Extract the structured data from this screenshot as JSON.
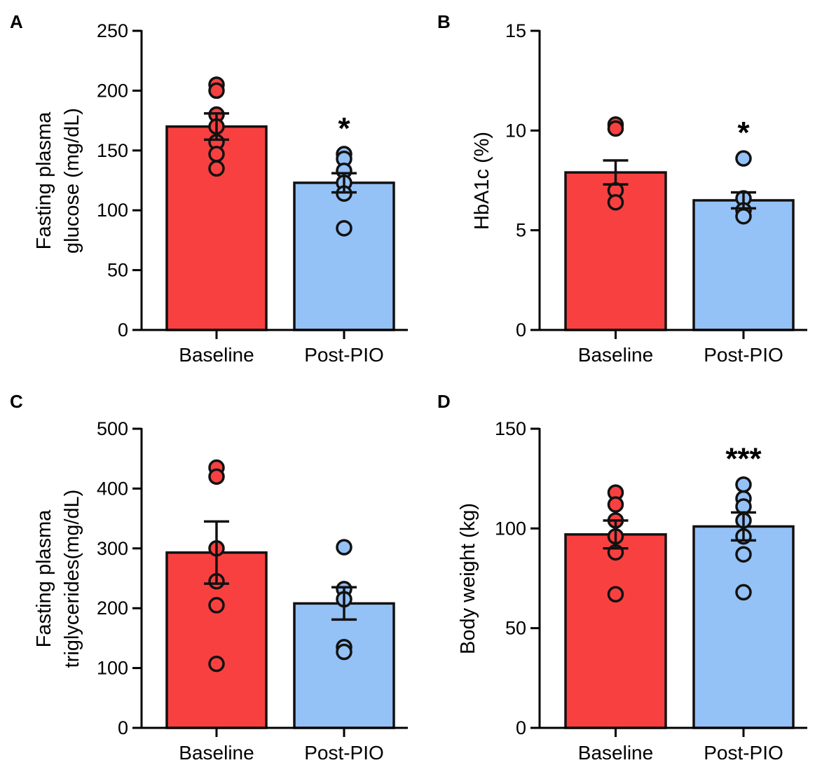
{
  "colors": {
    "baseline": "#f94040",
    "post": "#94c1f6",
    "stroke": "#111111"
  },
  "chart_data": [
    {
      "type": "bar",
      "panel": "A",
      "categories": [
        "Baseline",
        "Post-PIO"
      ],
      "values": [
        170,
        123
      ],
      "sem": [
        11,
        8
      ],
      "points": [
        [
          205,
          200,
          180,
          170,
          157,
          147,
          135
        ],
        [
          147,
          143,
          133,
          123,
          114,
          85
        ]
      ],
      "ylabel": [
        "Fasting plasma",
        "glucose (mg/dL)"
      ],
      "ylim": [
        0,
        250
      ],
      "yticks": [
        0,
        50,
        100,
        150,
        200,
        250
      ],
      "significance": [
        "",
        "*"
      ]
    },
    {
      "type": "bar",
      "panel": "B",
      "categories": [
        "Baseline",
        "Post-PIO"
      ],
      "values": [
        7.9,
        6.5
      ],
      "sem": [
        0.6,
        0.4
      ],
      "points": [
        [
          10.3,
          10.1,
          7.0,
          6.4
        ],
        [
          8.6,
          6.6,
          6.0,
          5.7
        ]
      ],
      "ylabel": [
        "HbA1c (%)"
      ],
      "ylim": [
        0,
        15
      ],
      "yticks": [
        0,
        5,
        10,
        15
      ],
      "significance": [
        "",
        "*"
      ]
    },
    {
      "type": "bar",
      "panel": "C",
      "categories": [
        "Baseline",
        "Post-PIO"
      ],
      "values": [
        293,
        208
      ],
      "sem": [
        52,
        27
      ],
      "points": [
        [
          435,
          420,
          300,
          245,
          205,
          107
        ],
        [
          302,
          232,
          215,
          135,
          127
        ]
      ],
      "ylabel": [
        "Fasting plasma",
        "triglycerides(mg/dL)"
      ],
      "ylim": [
        0,
        500
      ],
      "yticks": [
        0,
        100,
        200,
        300,
        400,
        500
      ],
      "significance": [
        "",
        ""
      ]
    },
    {
      "type": "bar",
      "panel": "D",
      "categories": [
        "Baseline",
        "Post-PIO"
      ],
      "values": [
        97,
        101
      ],
      "sem": [
        7,
        7
      ],
      "points": [
        [
          118,
          112,
          104,
          96,
          88,
          67
        ],
        [
          122,
          115,
          111,
          104,
          96,
          87,
          68
        ]
      ],
      "ylabel": [
        "Body weight (kg)"
      ],
      "ylim": [
        0,
        150
      ],
      "yticks": [
        0,
        50,
        100,
        150
      ],
      "significance": [
        "",
        "***"
      ]
    }
  ]
}
